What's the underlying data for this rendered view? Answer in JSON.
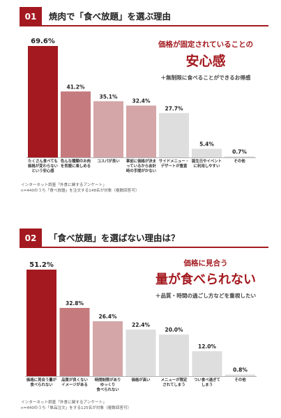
{
  "sections": [
    {
      "number": "01",
      "title": "焼肉で「食べ放題」を選ぶ理由",
      "callout_line1": "価格が固定されていることの",
      "callout_big": "安心感",
      "callout_sub": "＋無制限に食べることができるお得感",
      "note_line1": "インターネット調査「外食に関するアンケート」",
      "note_line2": "n=440のうち「食べ放題」を注文する148名が対象（複数回答可）"
    },
    {
      "number": "02",
      "title": "「食べ放題」を選ばない理由は？",
      "callout_line1": "価格に見合う",
      "callout_big": "量が食べられない",
      "callout_sub": "＋品質・時間の過ごし方などを重視したい",
      "note_line1": "インターネット調査「外食に関するアンケート」",
      "note_line2": "n=440のうち「単品注文」をする125名が対象（複数回答可）"
    }
  ],
  "chart_data": [
    {
      "type": "bar",
      "categories": [
        [
          "たくさん食べても",
          "価格が変わらない",
          "という安心感"
        ],
        [
          "色んな種類のお肉",
          "を気軽に楽しめる"
        ],
        [
          "コスパが良い"
        ],
        [
          "事前に価格が決ま",
          "っているから会計",
          "時の手間がかない"
        ],
        [
          "サイドメニュー・",
          "デザートが豊富"
        ],
        [
          "誕生日やイベント",
          "に利用しやすい"
        ],
        [
          "その他"
        ]
      ],
      "values": [
        69.6,
        41.2,
        35.1,
        32.4,
        27.7,
        5.4,
        0.7
      ],
      "value_labels": [
        "69.6%",
        "41.2%",
        "35.1%",
        "32.4%",
        "27.7%",
        "5.4%",
        "0.7%"
      ],
      "ylim": [
        0,
        69.6
      ],
      "colors": [
        "#a3191f",
        "#c57b7e",
        "#d4a6a7",
        "#d4a6a7",
        "#dedede",
        "#dedede",
        "#dedede"
      ]
    },
    {
      "type": "bar",
      "categories": [
        [
          "価格に見合う量が",
          "食べられない"
        ],
        [
          "品質が良くない",
          "イメージがある"
        ],
        [
          "時間制限があり",
          "ゆっくり",
          "食べられない"
        ],
        [
          "価格が高い"
        ],
        [
          "メニューが限定",
          "されてしまう"
        ],
        [
          "つい食べ過ぎて",
          "しまう"
        ],
        [
          "その他"
        ]
      ],
      "values": [
        51.2,
        32.8,
        26.4,
        22.4,
        20.0,
        12.0,
        0.8
      ],
      "value_labels": [
        "51.2%",
        "32.8%",
        "26.4%",
        "22.4%",
        "20.0%",
        "12.0%",
        "0.8%"
      ],
      "ylim": [
        0,
        51.2
      ],
      "colors": [
        "#a3191f",
        "#c57b7e",
        "#d4a6a7",
        "#dedede",
        "#dedede",
        "#dedede",
        "#dedede"
      ]
    }
  ]
}
